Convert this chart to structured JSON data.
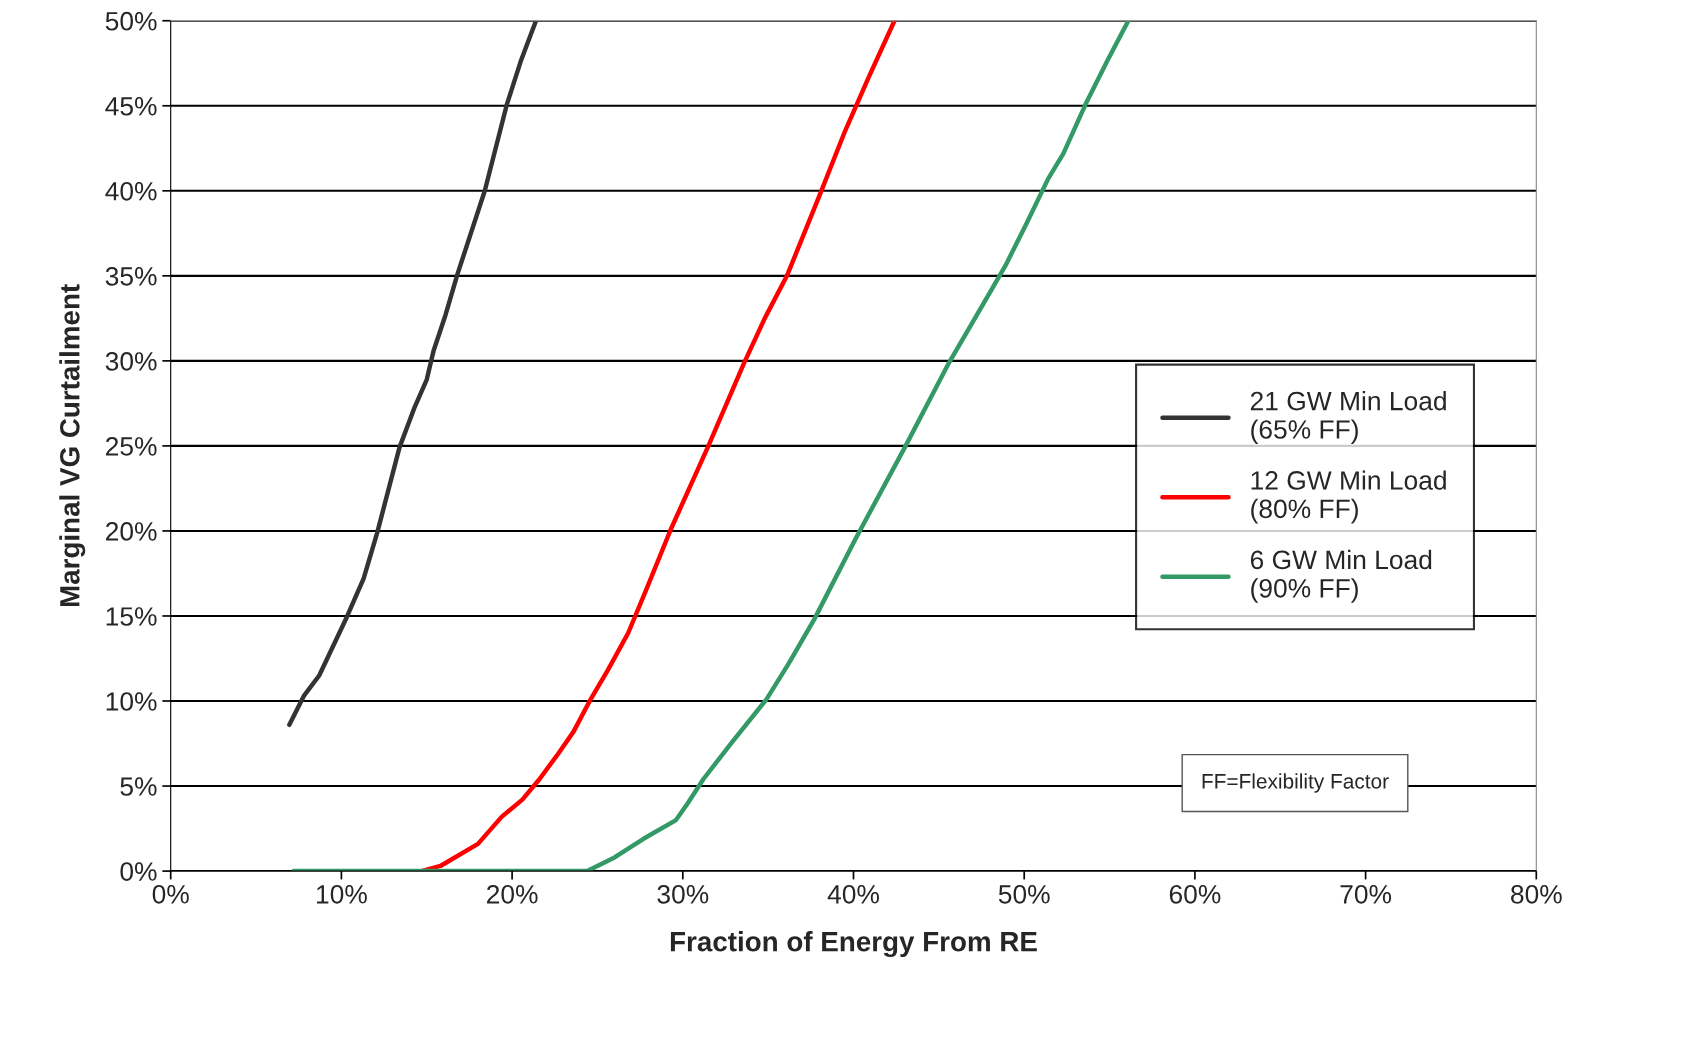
{
  "chart_data": {
    "type": "line",
    "xlabel": "Fraction of Energy From RE",
    "ylabel": "Marginal VG Curtailment",
    "xlim": [
      0,
      80
    ],
    "ylim": [
      0,
      50
    ],
    "xticks": [
      {
        "value": 0,
        "label": "0%"
      },
      {
        "value": 10,
        "label": "10%"
      },
      {
        "value": 20,
        "label": "20%"
      },
      {
        "value": 30,
        "label": "30%"
      },
      {
        "value": 40,
        "label": "40%"
      },
      {
        "value": 50,
        "label": "50%"
      },
      {
        "value": 60,
        "label": "60%"
      },
      {
        "value": 70,
        "label": "70%"
      },
      {
        "value": 80,
        "label": "80%"
      }
    ],
    "yticks": [
      {
        "value": 0,
        "label": "0%"
      },
      {
        "value": 5,
        "label": "5%"
      },
      {
        "value": 10,
        "label": "10%"
      },
      {
        "value": 15,
        "label": "15%"
      },
      {
        "value": 20,
        "label": "20%"
      },
      {
        "value": 25,
        "label": "25%"
      },
      {
        "value": 30,
        "label": "30%"
      },
      {
        "value": 35,
        "label": "35%"
      },
      {
        "value": 40,
        "label": "40%"
      },
      {
        "value": 45,
        "label": "45%"
      },
      {
        "value": 50,
        "label": "50%"
      }
    ],
    "grid": "y",
    "legend": "right",
    "line_style": "solid",
    "marker": "none",
    "annotations": [
      "FF=Flexibility Factor"
    ],
    "series": [
      {
        "name": "21 GW Min Load\n(65% FF)",
        "color": "#333333",
        "x": [
          6.95,
          7.8,
          8.7,
          10.3,
          11.3,
          12.1,
          13.4,
          14.3,
          15.0,
          15.4,
          16.1,
          16.8,
          18.4,
          19.7,
          20.5,
          21.4
        ],
        "values": [
          8.6,
          10.3,
          11.5,
          14.9,
          17.2,
          19.9,
          24.9,
          27.3,
          28.9,
          30.6,
          32.7,
          35.1,
          40.0,
          45.1,
          47.6,
          50
        ]
      },
      {
        "name": "12 GW Min Load\n(80% FF)",
        "color": "#ff0000",
        "x": [
          14.7,
          15.8,
          18.0,
          19.4,
          20.6,
          21.6,
          22.7,
          23.6,
          24.6,
          25.6,
          26.8,
          27.8,
          29.3,
          31.5,
          33.6,
          34.8,
          36.1,
          38.0,
          39.5,
          40.9,
          42.4
        ],
        "values": [
          0,
          0.3,
          1.6,
          3.2,
          4.2,
          5.4,
          6.9,
          8.2,
          10.1,
          11.8,
          14.0,
          16.4,
          20.1,
          25.0,
          29.9,
          32.5,
          35.0,
          39.7,
          43.5,
          46.7,
          50
        ]
      },
      {
        "name": "6 GW Min Load\n(90% FF)",
        "color": "#339966",
        "x": [
          7.2,
          24.4,
          26.0,
          27.7,
          29.6,
          30.3,
          31.2,
          32.9,
          34.9,
          36.2,
          37.7,
          40.1,
          43.0,
          45.6,
          47.4,
          48.9,
          50.1,
          51.4,
          52.3,
          53.6,
          54.9,
          56.1
        ],
        "values": [
          0,
          0,
          0.8,
          1.9,
          3.0,
          4.0,
          5.4,
          7.6,
          10.1,
          12.2,
          14.8,
          19.5,
          24.9,
          29.9,
          33.0,
          35.6,
          38.0,
          40.7,
          42.2,
          45.1,
          47.7,
          50
        ]
      }
    ]
  }
}
